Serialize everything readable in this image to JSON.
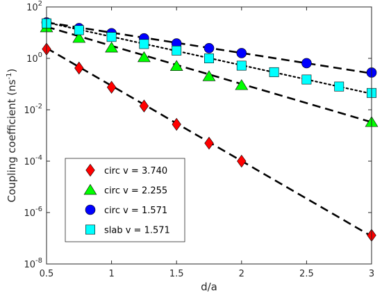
{
  "chart_data": {
    "type": "scatter",
    "xlabel": "d/a",
    "ylabel": "Coupling coefficient (ns",
    "ylabel_sup": "-1",
    "ylabel_end": ")",
    "xlim": [
      0.5,
      3
    ],
    "ylim": [
      1e-08,
      100
    ],
    "yscale": "log",
    "grid": false,
    "legend_placement": "lower-left",
    "x_ticks": [
      {
        "value": 0.5,
        "label": "0.5"
      },
      {
        "value": 1,
        "label": "1"
      },
      {
        "value": 1.5,
        "label": "1.5"
      },
      {
        "value": 2,
        "label": "2"
      },
      {
        "value": 2.5,
        "label": "2.5"
      },
      {
        "value": 3,
        "label": "3"
      }
    ],
    "y_ticks": [
      {
        "value": 100,
        "base": "10",
        "exp": "2"
      },
      {
        "value": 1,
        "base": "10",
        "exp": "0"
      },
      {
        "value": 0.01,
        "base": "10",
        "exp": "-2"
      },
      {
        "value": 0.0001,
        "base": "10",
        "exp": "-4"
      },
      {
        "value": 1e-06,
        "base": "10",
        "exp": "-6"
      },
      {
        "value": 1e-08,
        "base": "10",
        "exp": "-8"
      }
    ],
    "series": [
      {
        "name": "circ v = 3.740",
        "marker": "diamond",
        "color": "#ff0000",
        "x": [
          0.5,
          0.75,
          1,
          1.25,
          1.5,
          1.75,
          2,
          3
        ],
        "y": [
          2.3,
          0.42,
          0.075,
          0.014,
          0.0027,
          0.0005,
          0.0001,
          1.3e-07
        ],
        "fit": {
          "style": "dashed",
          "x": [
            0.5,
            3
          ],
          "y": [
            2.5,
            1.2e-07
          ]
        }
      },
      {
        "name": "circ v = 2.255",
        "marker": "triangle",
        "color": "#00ff00",
        "x": [
          0.5,
          0.75,
          1,
          1.25,
          1.5,
          1.75,
          2,
          3
        ],
        "y": [
          16,
          6.2,
          2.6,
          1.1,
          0.5,
          0.2,
          0.09,
          0.0033
        ],
        "fit": {
          "style": "dashed",
          "x": [
            0.5,
            3
          ],
          "y": [
            17,
            0.0033
          ]
        }
      },
      {
        "name": "circ v = 1.571",
        "marker": "circle",
        "color": "#0000ff",
        "x": [
          0.5,
          0.75,
          1,
          1.25,
          1.5,
          1.75,
          2,
          2.5,
          3
        ],
        "y": [
          25,
          15,
          9.5,
          6,
          3.8,
          2.5,
          1.6,
          0.65,
          0.28
        ],
        "fit": {
          "style": "dashed",
          "x": [
            0.5,
            3
          ],
          "y": [
            25,
            0.26
          ]
        }
      },
      {
        "name": "slab v = 1.571",
        "marker": "square",
        "color": "#00ffff",
        "x": [
          0.5,
          0.75,
          1,
          1.25,
          1.5,
          1.75,
          2,
          2.25,
          2.5,
          2.75,
          3
        ],
        "y": [
          23,
          12.5,
          6.8,
          3.6,
          2,
          1,
          0.52,
          0.29,
          0.15,
          0.08,
          0.045
        ],
        "fit": {
          "style": "dotted",
          "x": [
            0.5,
            3
          ],
          "y": [
            25,
            0.042
          ]
        }
      }
    ]
  }
}
